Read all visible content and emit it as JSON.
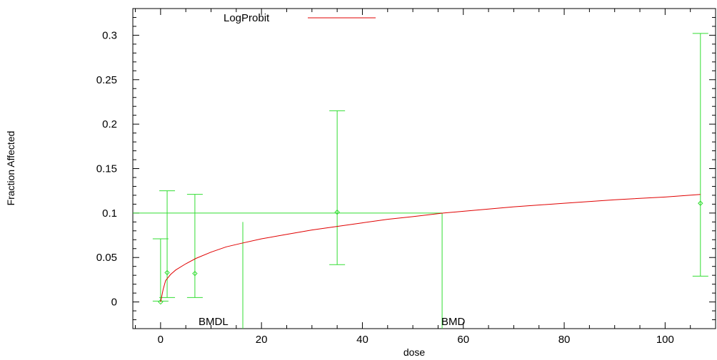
{
  "chart_data": {
    "type": "line",
    "title": "",
    "xlabel": "dose",
    "ylabel": "Fraction Affected",
    "xlim": [
      -5.5,
      110
    ],
    "ylim": [
      -0.03,
      0.33
    ],
    "x_ticks": [
      0,
      20,
      40,
      60,
      80,
      100
    ],
    "y_ticks": [
      0,
      0.05,
      0.1,
      0.15,
      0.2,
      0.25,
      0.3
    ],
    "y_tick_labels": [
      "0",
      "0.05",
      "0.1",
      "0.15",
      "0.2",
      "0.25",
      "0.3"
    ],
    "grid": false,
    "legend": {
      "position": "top",
      "entries": [
        {
          "name": "LogProbit",
          "color": "#e00000"
        }
      ]
    },
    "series": [
      {
        "name": "LogProbit",
        "color": "#e00000",
        "x": [
          0,
          0.5,
          1,
          2,
          3,
          5,
          7,
          10,
          13,
          16,
          20,
          25,
          30,
          35,
          40,
          45,
          50,
          56,
          60,
          70,
          80,
          90,
          100,
          107
        ],
        "y": [
          0,
          0.014,
          0.024,
          0.031,
          0.036,
          0.043,
          0.049,
          0.056,
          0.062,
          0.066,
          0.071,
          0.076,
          0.081,
          0.085,
          0.089,
          0.093,
          0.096,
          0.1,
          0.102,
          0.107,
          0.111,
          0.115,
          0.118,
          0.121
        ]
      }
    ],
    "observations": {
      "color": "#33dd33",
      "points": [
        {
          "x": 0,
          "y": 0,
          "lower": 0.001,
          "upper": 0.071
        },
        {
          "x": 1.3,
          "y": 0.033,
          "lower": 0.005,
          "upper": 0.125
        },
        {
          "x": 6.8,
          "y": 0.032,
          "lower": 0.005,
          "upper": 0.121
        },
        {
          "x": 35,
          "y": 0.101,
          "lower": 0.042,
          "upper": 0.215
        },
        {
          "x": 107,
          "y": 0.111,
          "lower": 0.029,
          "upper": 0.302
        }
      ]
    },
    "benchmark": {
      "bmr_level": 0.1,
      "bmd": 55.8,
      "bmdl": 16.3,
      "bmd_label": "BMD",
      "bmdl_label": "BMDL",
      "bmdl_line_top": 0.09,
      "color": "#33dd33"
    }
  }
}
